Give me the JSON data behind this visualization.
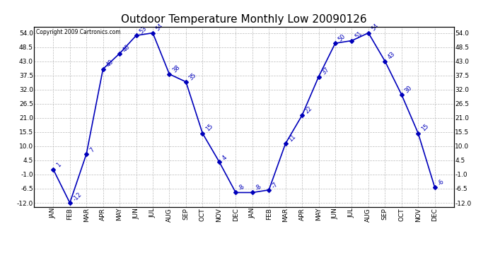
{
  "title": "Outdoor Temperature Monthly Low 20090126",
  "copyright": "Copyright 2009 Cartronics.com",
  "months": [
    "JAN",
    "FEB",
    "MAR",
    "APR",
    "MAY",
    "JUN",
    "JUL",
    "AUG",
    "SEP",
    "OCT",
    "NOV",
    "DEC",
    "JAN",
    "FEB",
    "MAR",
    "APR",
    "MAY",
    "JUN",
    "JUL",
    "AUG",
    "SEP",
    "OCT",
    "NOV",
    "DEC"
  ],
  "values": [
    1,
    -12,
    7,
    40,
    46,
    53,
    54,
    38,
    35,
    15,
    4,
    -8,
    -8,
    -7,
    11,
    22,
    37,
    50,
    51,
    54,
    43,
    30,
    15,
    -6
  ],
  "line_color": "#0000bb",
  "marker": "D",
  "marker_size": 3,
  "bg_color": "#ffffff",
  "grid_color": "#bbbbbb",
  "ylim": [
    -13.5,
    56.5
  ],
  "yticks": [
    -12.0,
    -6.5,
    -1.0,
    4.5,
    10.0,
    15.5,
    21.0,
    26.5,
    32.0,
    37.5,
    43.0,
    48.5,
    54.0
  ],
  "title_fontsize": 11,
  "tick_fontsize": 6.5,
  "annotation_fontsize": 6,
  "copyright_fontsize": 5.5
}
